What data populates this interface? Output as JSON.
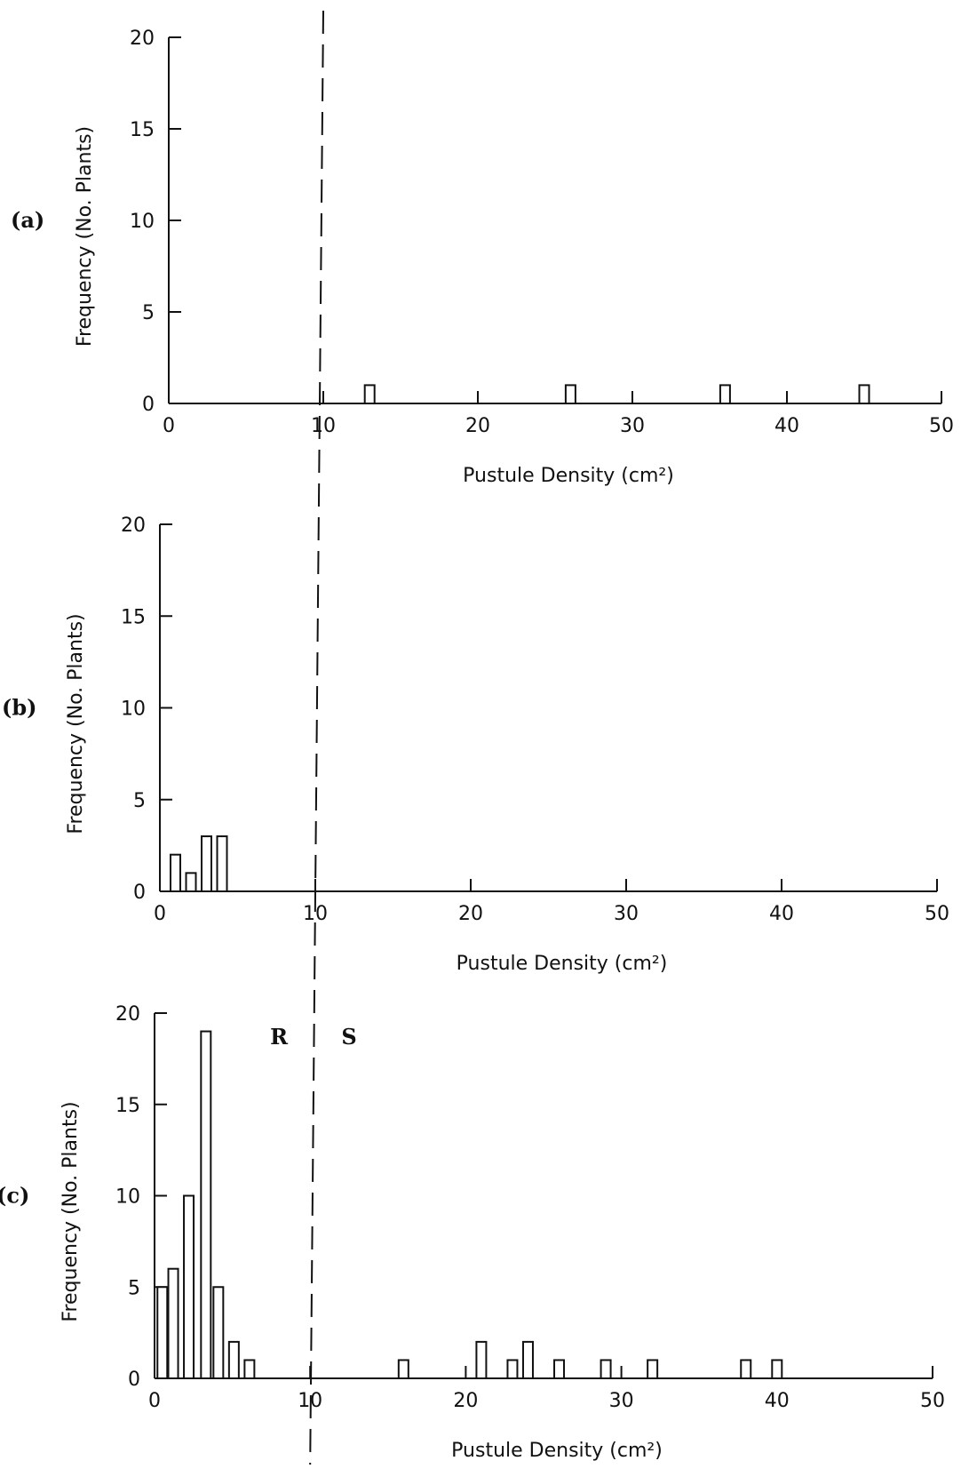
{
  "chart_data": [
    {
      "panel_label": "(a)",
      "type": "bar",
      "xlabel": "Pustule Density (cm²)",
      "ylabel": "Frequency (No. Plants)",
      "xlim": [
        0,
        50
      ],
      "ylim": [
        0,
        20
      ],
      "xticks": [
        0,
        10,
        20,
        30,
        40,
        50
      ],
      "yticks": [
        0,
        5,
        10,
        15,
        20
      ],
      "bars": [
        {
          "x": 13,
          "value": 1
        },
        {
          "x": 26,
          "value": 1
        },
        {
          "x": 36,
          "value": 1
        },
        {
          "x": 45,
          "value": 1
        }
      ],
      "threshold_x": 10,
      "annotations": []
    },
    {
      "panel_label": "(b)",
      "type": "bar",
      "xlabel": "Pustule Density (cm²)",
      "ylabel": "Frequency (No. Plants)",
      "xlim": [
        0,
        50
      ],
      "ylim": [
        0,
        20
      ],
      "xticks": [
        0,
        10,
        20,
        30,
        40,
        50
      ],
      "yticks": [
        0,
        5,
        10,
        15,
        20
      ],
      "bars": [
        {
          "x": 1,
          "value": 2
        },
        {
          "x": 2,
          "value": 1
        },
        {
          "x": 3,
          "value": 3
        },
        {
          "x": 4,
          "value": 3
        }
      ],
      "threshold_x": 10,
      "annotations": []
    },
    {
      "panel_label": "(c)",
      "type": "bar",
      "xlabel": "Pustule Density (cm²)",
      "ylabel": "Frequency (No. Plants)",
      "xlim": [
        0,
        50
      ],
      "ylim": [
        0,
        20
      ],
      "xticks": [
        0,
        10,
        20,
        30,
        40,
        50
      ],
      "yticks": [
        0,
        5,
        10,
        15,
        20
      ],
      "bars": [
        {
          "x": 0.5,
          "value": 5
        },
        {
          "x": 1.2,
          "value": 6
        },
        {
          "x": 2.2,
          "value": 10
        },
        {
          "x": 3.3,
          "value": 19
        },
        {
          "x": 4.1,
          "value": 5
        },
        {
          "x": 5.1,
          "value": 2
        },
        {
          "x": 6.1,
          "value": 1
        },
        {
          "x": 16,
          "value": 1
        },
        {
          "x": 21,
          "value": 2
        },
        {
          "x": 23,
          "value": 1
        },
        {
          "x": 24,
          "value": 2
        },
        {
          "x": 26,
          "value": 1
        },
        {
          "x": 29,
          "value": 1
        },
        {
          "x": 32,
          "value": 1
        },
        {
          "x": 38,
          "value": 1
        },
        {
          "x": 40,
          "value": 1
        }
      ],
      "threshold_x": 10,
      "annotations": [
        {
          "text": "R",
          "x": 8,
          "y": 18.3
        },
        {
          "text": "S",
          "x": 12.5,
          "y": 18.3
        }
      ]
    }
  ]
}
